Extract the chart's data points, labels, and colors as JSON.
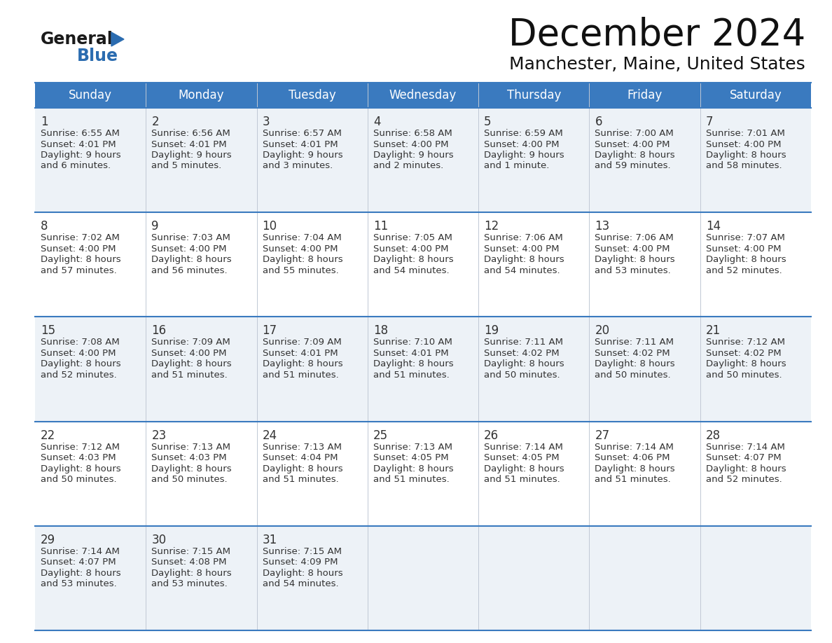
{
  "title": "December 2024",
  "subtitle": "Manchester, Maine, United States",
  "days_of_week": [
    "Sunday",
    "Monday",
    "Tuesday",
    "Wednesday",
    "Thursday",
    "Friday",
    "Saturday"
  ],
  "header_bg": "#3a7abf",
  "header_text": "#ffffff",
  "row_bg_odd": "#edf2f7",
  "row_bg_even": "#ffffff",
  "separator_color": "#3a7abf",
  "text_color": "#333333",
  "day_num_color": "#333333",
  "title_fontsize": 38,
  "subtitle_fontsize": 18,
  "header_fontsize": 12,
  "day_num_fontsize": 12,
  "cell_fontsize": 9.5,
  "calendar_data": [
    [
      {
        "day": 1,
        "sunrise": "6:55 AM",
        "sunset": "4:01 PM",
        "dl1": "9 hours",
        "dl2": "and 6 minutes."
      },
      {
        "day": 2,
        "sunrise": "6:56 AM",
        "sunset": "4:01 PM",
        "dl1": "9 hours",
        "dl2": "and 5 minutes."
      },
      {
        "day": 3,
        "sunrise": "6:57 AM",
        "sunset": "4:01 PM",
        "dl1": "9 hours",
        "dl2": "and 3 minutes."
      },
      {
        "day": 4,
        "sunrise": "6:58 AM",
        "sunset": "4:00 PM",
        "dl1": "9 hours",
        "dl2": "and 2 minutes."
      },
      {
        "day": 5,
        "sunrise": "6:59 AM",
        "sunset": "4:00 PM",
        "dl1": "9 hours",
        "dl2": "and 1 minute."
      },
      {
        "day": 6,
        "sunrise": "7:00 AM",
        "sunset": "4:00 PM",
        "dl1": "8 hours",
        "dl2": "and 59 minutes."
      },
      {
        "day": 7,
        "sunrise": "7:01 AM",
        "sunset": "4:00 PM",
        "dl1": "8 hours",
        "dl2": "and 58 minutes."
      }
    ],
    [
      {
        "day": 8,
        "sunrise": "7:02 AM",
        "sunset": "4:00 PM",
        "dl1": "8 hours",
        "dl2": "and 57 minutes."
      },
      {
        "day": 9,
        "sunrise": "7:03 AM",
        "sunset": "4:00 PM",
        "dl1": "8 hours",
        "dl2": "and 56 minutes."
      },
      {
        "day": 10,
        "sunrise": "7:04 AM",
        "sunset": "4:00 PM",
        "dl1": "8 hours",
        "dl2": "and 55 minutes."
      },
      {
        "day": 11,
        "sunrise": "7:05 AM",
        "sunset": "4:00 PM",
        "dl1": "8 hours",
        "dl2": "and 54 minutes."
      },
      {
        "day": 12,
        "sunrise": "7:06 AM",
        "sunset": "4:00 PM",
        "dl1": "8 hours",
        "dl2": "and 54 minutes."
      },
      {
        "day": 13,
        "sunrise": "7:06 AM",
        "sunset": "4:00 PM",
        "dl1": "8 hours",
        "dl2": "and 53 minutes."
      },
      {
        "day": 14,
        "sunrise": "7:07 AM",
        "sunset": "4:00 PM",
        "dl1": "8 hours",
        "dl2": "and 52 minutes."
      }
    ],
    [
      {
        "day": 15,
        "sunrise": "7:08 AM",
        "sunset": "4:00 PM",
        "dl1": "8 hours",
        "dl2": "and 52 minutes."
      },
      {
        "day": 16,
        "sunrise": "7:09 AM",
        "sunset": "4:00 PM",
        "dl1": "8 hours",
        "dl2": "and 51 minutes."
      },
      {
        "day": 17,
        "sunrise": "7:09 AM",
        "sunset": "4:01 PM",
        "dl1": "8 hours",
        "dl2": "and 51 minutes."
      },
      {
        "day": 18,
        "sunrise": "7:10 AM",
        "sunset": "4:01 PM",
        "dl1": "8 hours",
        "dl2": "and 51 minutes."
      },
      {
        "day": 19,
        "sunrise": "7:11 AM",
        "sunset": "4:02 PM",
        "dl1": "8 hours",
        "dl2": "and 50 minutes."
      },
      {
        "day": 20,
        "sunrise": "7:11 AM",
        "sunset": "4:02 PM",
        "dl1": "8 hours",
        "dl2": "and 50 minutes."
      },
      {
        "day": 21,
        "sunrise": "7:12 AM",
        "sunset": "4:02 PM",
        "dl1": "8 hours",
        "dl2": "and 50 minutes."
      }
    ],
    [
      {
        "day": 22,
        "sunrise": "7:12 AM",
        "sunset": "4:03 PM",
        "dl1": "8 hours",
        "dl2": "and 50 minutes."
      },
      {
        "day": 23,
        "sunrise": "7:13 AM",
        "sunset": "4:03 PM",
        "dl1": "8 hours",
        "dl2": "and 50 minutes."
      },
      {
        "day": 24,
        "sunrise": "7:13 AM",
        "sunset": "4:04 PM",
        "dl1": "8 hours",
        "dl2": "and 51 minutes."
      },
      {
        "day": 25,
        "sunrise": "7:13 AM",
        "sunset": "4:05 PM",
        "dl1": "8 hours",
        "dl2": "and 51 minutes."
      },
      {
        "day": 26,
        "sunrise": "7:14 AM",
        "sunset": "4:05 PM",
        "dl1": "8 hours",
        "dl2": "and 51 minutes."
      },
      {
        "day": 27,
        "sunrise": "7:14 AM",
        "sunset": "4:06 PM",
        "dl1": "8 hours",
        "dl2": "and 51 minutes."
      },
      {
        "day": 28,
        "sunrise": "7:14 AM",
        "sunset": "4:07 PM",
        "dl1": "8 hours",
        "dl2": "and 52 minutes."
      }
    ],
    [
      {
        "day": 29,
        "sunrise": "7:14 AM",
        "sunset": "4:07 PM",
        "dl1": "8 hours",
        "dl2": "and 53 minutes."
      },
      {
        "day": 30,
        "sunrise": "7:15 AM",
        "sunset": "4:08 PM",
        "dl1": "8 hours",
        "dl2": "and 53 minutes."
      },
      {
        "day": 31,
        "sunrise": "7:15 AM",
        "sunset": "4:09 PM",
        "dl1": "8 hours",
        "dl2": "and 54 minutes."
      },
      null,
      null,
      null,
      null
    ]
  ],
  "logo_general_color": "#1a1a1a",
  "logo_blue_color": "#2b6cb0",
  "logo_triangle_color": "#2b6cb0"
}
